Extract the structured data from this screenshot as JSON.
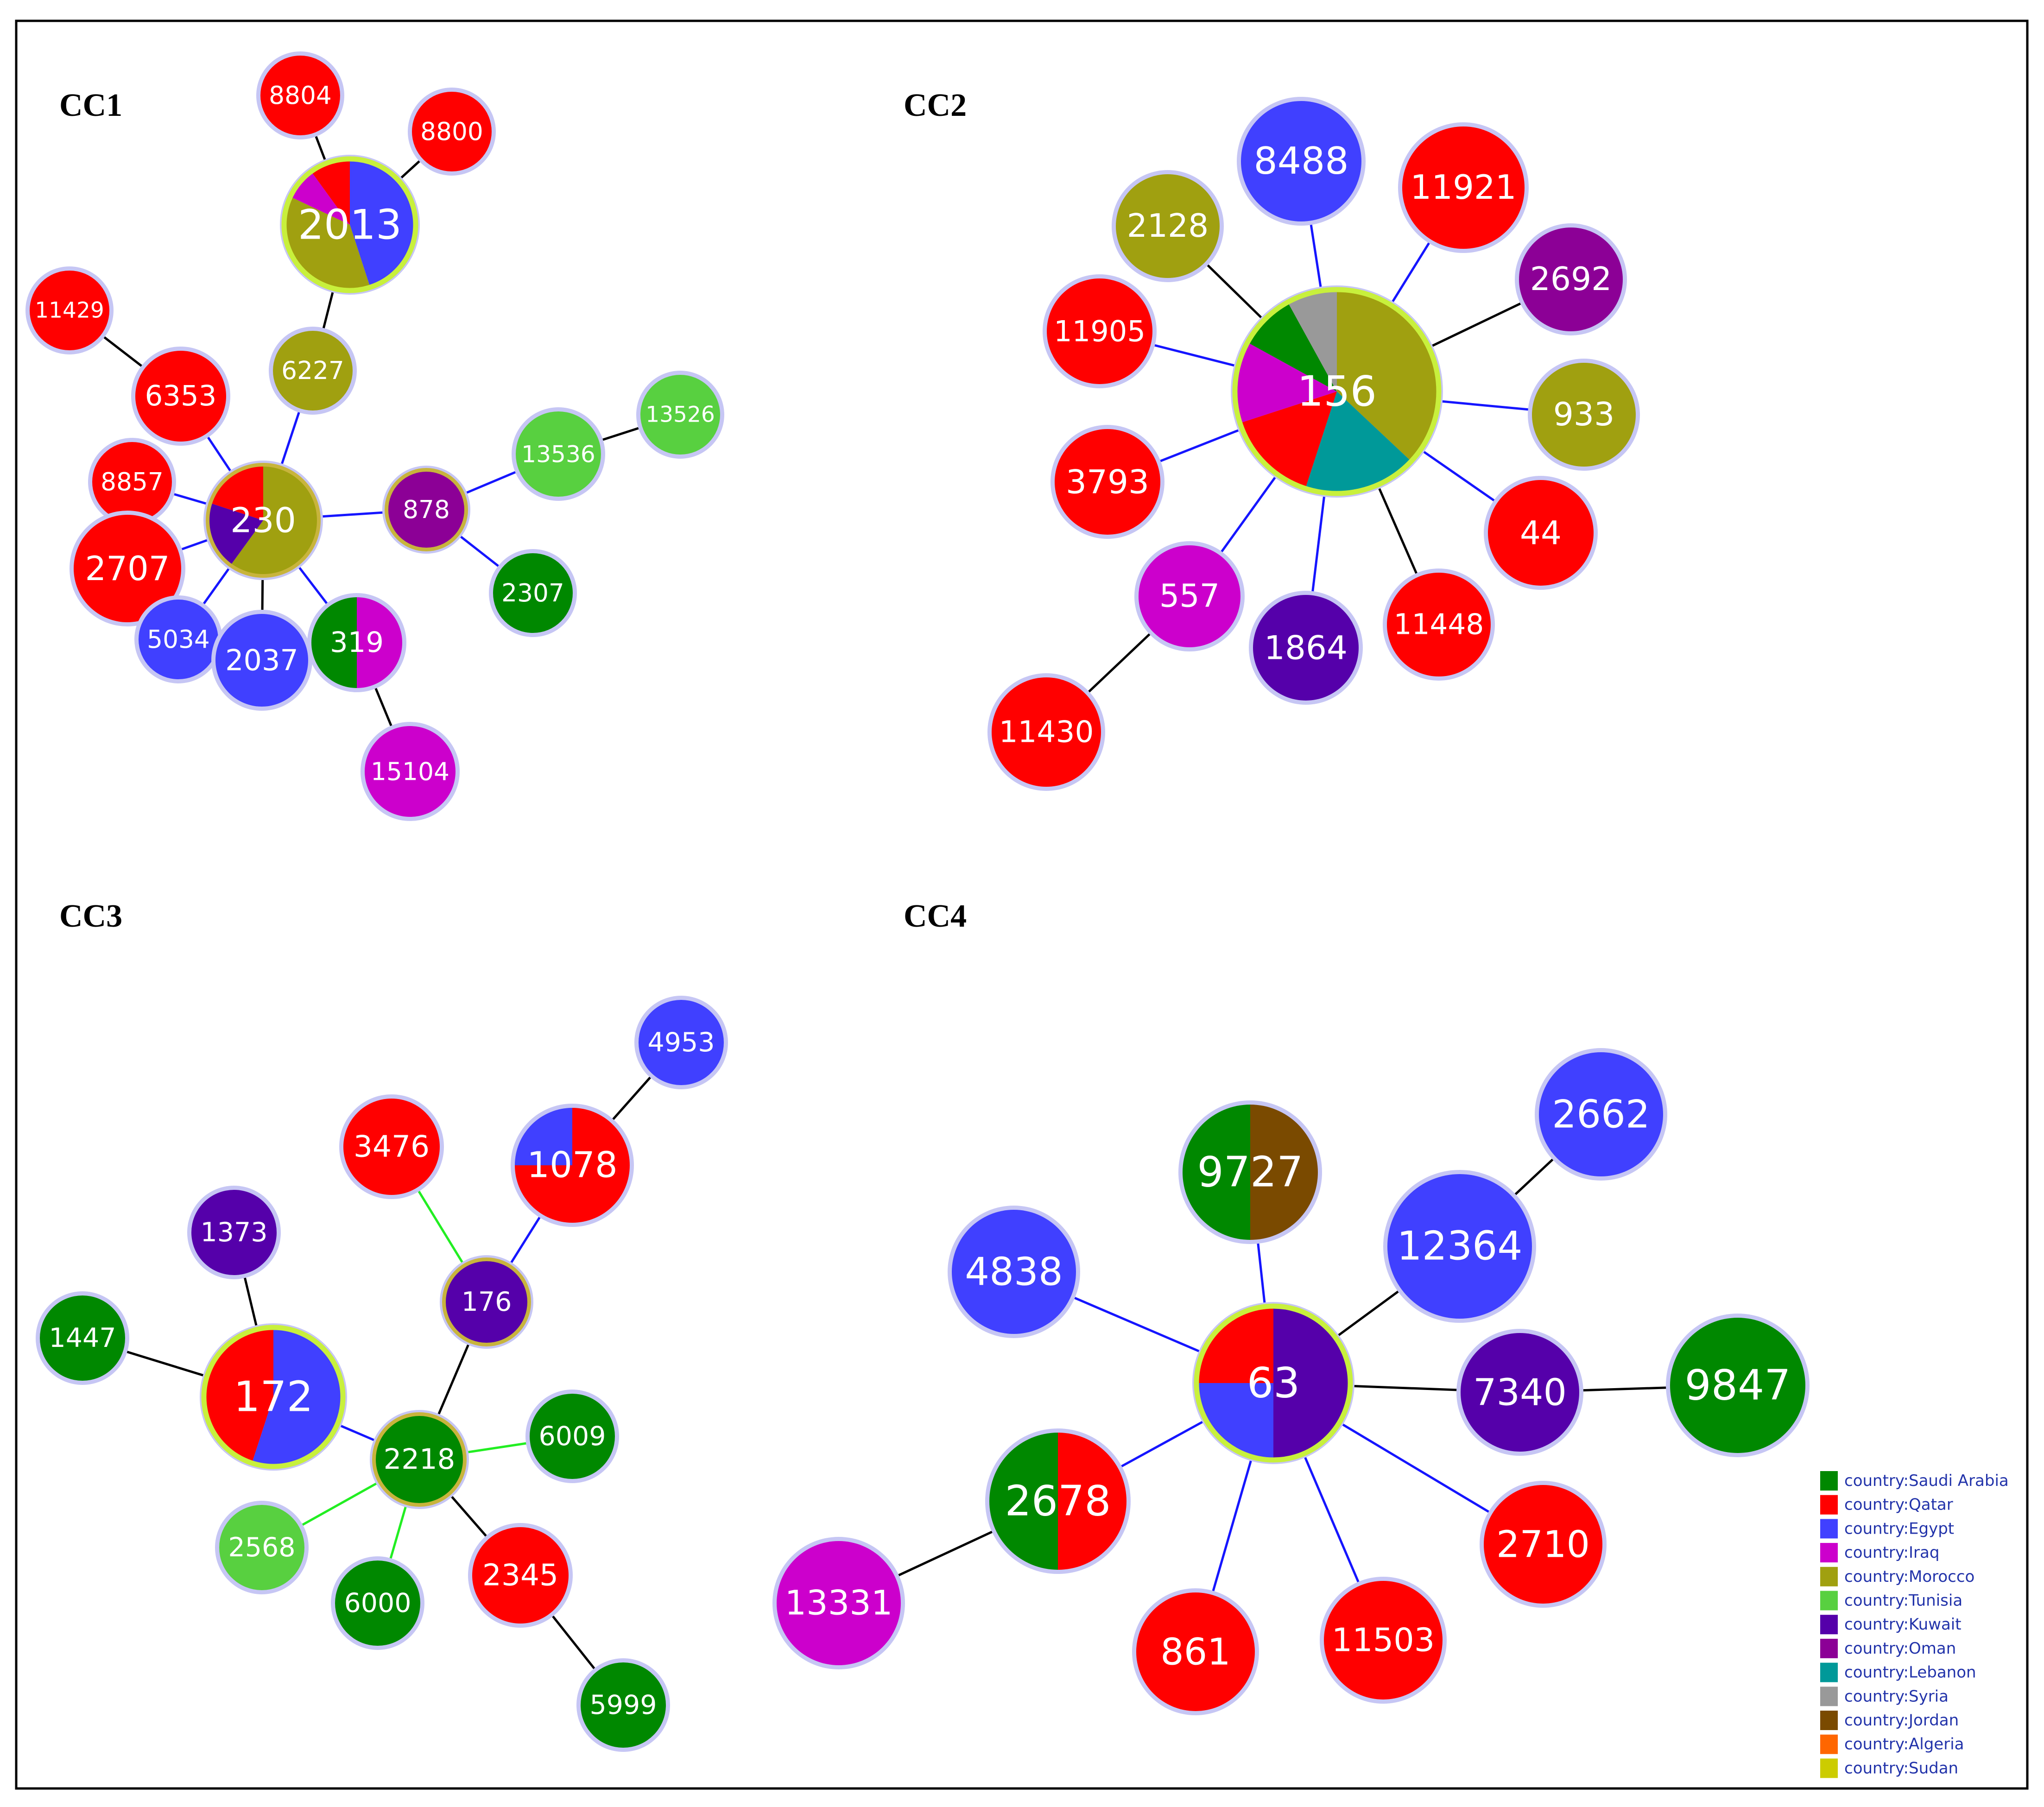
{
  "colors": {
    "Saudi Arabia": "#008800",
    "Qatar": "#ff0000",
    "Egypt": "#4040ff",
    "Iraq": "#cc00cc",
    "Morocco": "#a0a010",
    "Tunisia": "#58d040",
    "Kuwait": "#5500aa",
    "Oman": "#8c0096",
    "Lebanon": "#009999",
    "Syria": "#999999",
    "Jordan": "#7a4a00",
    "Algeria": "#ff6600",
    "Sudan": "#cccc00"
  },
  "legend": [
    {
      "country": "Saudi Arabia",
      "label": "country:Saudi Arabia"
    },
    {
      "country": "Qatar",
      "label": "country:Qatar"
    },
    {
      "country": "Egypt",
      "label": "country:Egypt"
    },
    {
      "country": "Iraq",
      "label": "country:Iraq"
    },
    {
      "country": "Morocco",
      "label": "country:Morocco"
    },
    {
      "country": "Tunisia",
      "label": "country:Tunisia"
    },
    {
      "country": "Kuwait",
      "label": "country:Kuwait"
    },
    {
      "country": "Oman",
      "label": "country:Oman"
    },
    {
      "country": "Lebanon",
      "label": "country:Lebanon"
    },
    {
      "country": "Syria",
      "label": "country:Syria"
    },
    {
      "country": "Jordan",
      "label": "country:Jordan"
    },
    {
      "country": "Algeria",
      "label": "country:Algeria"
    },
    {
      "country": "Sudan",
      "label": "country:Sudan"
    }
  ],
  "clusters": [
    {
      "title": "CC1",
      "nodes": [
        {
          "id": "2013",
          "founder": true,
          "pie": [
            [
              "Egypt",
              45
            ],
            [
              "Morocco",
              37
            ],
            [
              "Iraq",
              8
            ],
            [
              "Qatar",
              10
            ]
          ]
        },
        {
          "id": "8804",
          "pie": [
            [
              "Qatar",
              1
            ]
          ]
        },
        {
          "id": "8800",
          "pie": [
            [
              "Qatar",
              1
            ]
          ]
        },
        {
          "id": "11429",
          "pie": [
            [
              "Qatar",
              1
            ]
          ]
        },
        {
          "id": "6353",
          "pie": [
            [
              "Qatar",
              1
            ]
          ]
        },
        {
          "id": "6227",
          "pie": [
            [
              "Morocco",
              1
            ]
          ]
        },
        {
          "id": "230",
          "founder": true,
          "pie": [
            [
              "Morocco",
              60
            ],
            [
              "Kuwait",
              20
            ],
            [
              "Qatar",
              20
            ]
          ]
        },
        {
          "id": "8857",
          "pie": [
            [
              "Qatar",
              1
            ]
          ]
        },
        {
          "id": "2707",
          "pie": [
            [
              "Qatar",
              1
            ]
          ]
        },
        {
          "id": "5034",
          "pie": [
            [
              "Egypt",
              1
            ]
          ]
        },
        {
          "id": "2037",
          "pie": [
            [
              "Egypt",
              1
            ]
          ]
        },
        {
          "id": "319",
          "pie": [
            [
              "Iraq",
              50
            ],
            [
              "Saudi Arabia",
              50
            ]
          ]
        },
        {
          "id": "15104",
          "pie": [
            [
              "Iraq",
              1
            ]
          ]
        },
        {
          "id": "878",
          "founder": true,
          "pie": [
            [
              "Oman",
              1
            ]
          ]
        },
        {
          "id": "13536",
          "pie": [
            [
              "Tunisia",
              1
            ]
          ]
        },
        {
          "id": "13526",
          "pie": [
            [
              "Tunisia",
              1
            ]
          ]
        },
        {
          "id": "2307",
          "pie": [
            [
              "Saudi Arabia",
              1
            ]
          ]
        }
      ],
      "edges": [
        [
          "2013",
          "8804",
          "black"
        ],
        [
          "2013",
          "8800",
          "black"
        ],
        [
          "2013",
          "6227",
          "black"
        ],
        [
          "6227",
          "230",
          "blue"
        ],
        [
          "11429",
          "6353",
          "black"
        ],
        [
          "6353",
          "230",
          "blue"
        ],
        [
          "8857",
          "230",
          "blue"
        ],
        [
          "2707",
          "230",
          "blue"
        ],
        [
          "5034",
          "230",
          "blue"
        ],
        [
          "2037",
          "230",
          "black"
        ],
        [
          "319",
          "230",
          "blue"
        ],
        [
          "319",
          "15104",
          "black"
        ],
        [
          "230",
          "878",
          "blue"
        ],
        [
          "878",
          "13536",
          "blue"
        ],
        [
          "13536",
          "13526",
          "black"
        ],
        [
          "878",
          "2307",
          "blue"
        ]
      ]
    },
    {
      "title": "CC2",
      "nodes": [
        {
          "id": "156",
          "founder": true,
          "pie": [
            [
              "Morocco",
              37
            ],
            [
              "Lebanon",
              18
            ],
            [
              "Qatar",
              15
            ],
            [
              "Iraq",
              13
            ],
            [
              "Saudi Arabia",
              9
            ],
            [
              "Syria",
              8
            ]
          ]
        },
        {
          "id": "8488",
          "pie": [
            [
              "Egypt",
              1
            ]
          ]
        },
        {
          "id": "11921",
          "pie": [
            [
              "Qatar",
              1
            ]
          ]
        },
        {
          "id": "2128",
          "pie": [
            [
              "Morocco",
              1
            ]
          ]
        },
        {
          "id": "2692",
          "pie": [
            [
              "Oman",
              1
            ]
          ]
        },
        {
          "id": "11905",
          "pie": [
            [
              "Qatar",
              1
            ]
          ]
        },
        {
          "id": "933",
          "pie": [
            [
              "Morocco",
              1
            ]
          ]
        },
        {
          "id": "3793",
          "pie": [
            [
              "Qatar",
              1
            ]
          ]
        },
        {
          "id": "44",
          "pie": [
            [
              "Qatar",
              1
            ]
          ]
        },
        {
          "id": "557",
          "pie": [
            [
              "Iraq",
              1
            ]
          ]
        },
        {
          "id": "1864",
          "pie": [
            [
              "Kuwait",
              1
            ]
          ]
        },
        {
          "id": "11448",
          "pie": [
            [
              "Qatar",
              1
            ]
          ]
        },
        {
          "id": "11430",
          "pie": [
            [
              "Qatar",
              1
            ]
          ]
        }
      ],
      "edges": [
        [
          "156",
          "8488",
          "blue"
        ],
        [
          "156",
          "11921",
          "blue"
        ],
        [
          "156",
          "2128",
          "black"
        ],
        [
          "156",
          "2692",
          "black"
        ],
        [
          "156",
          "11905",
          "blue"
        ],
        [
          "156",
          "933",
          "blue"
        ],
        [
          "156",
          "3793",
          "blue"
        ],
        [
          "156",
          "44",
          "blue"
        ],
        [
          "156",
          "557",
          "blue"
        ],
        [
          "156",
          "1864",
          "blue"
        ],
        [
          "156",
          "11448",
          "black"
        ],
        [
          "557",
          "11430",
          "black"
        ]
      ]
    },
    {
      "title": "CC3",
      "nodes": [
        {
          "id": "4953",
          "pie": [
            [
              "Egypt",
              1
            ]
          ]
        },
        {
          "id": "3476",
          "pie": [
            [
              "Qatar",
              1
            ]
          ]
        },
        {
          "id": "1078",
          "pie": [
            [
              "Qatar",
              75
            ],
            [
              "Egypt",
              25
            ]
          ]
        },
        {
          "id": "1373",
          "pie": [
            [
              "Kuwait",
              1
            ]
          ]
        },
        {
          "id": "176",
          "founder": true,
          "pie": [
            [
              "Kuwait",
              1
            ]
          ]
        },
        {
          "id": "1447",
          "pie": [
            [
              "Saudi Arabia",
              1
            ]
          ]
        },
        {
          "id": "172",
          "founder": true,
          "pie": [
            [
              "Egypt",
              55
            ],
            [
              "Qatar",
              45
            ]
          ]
        },
        {
          "id": "2218",
          "founder": true,
          "pie": [
            [
              "Saudi Arabia",
              1
            ]
          ]
        },
        {
          "id": "6009",
          "pie": [
            [
              "Saudi Arabia",
              1
            ]
          ]
        },
        {
          "id": "2568",
          "pie": [
            [
              "Tunisia",
              1
            ]
          ]
        },
        {
          "id": "6000",
          "pie": [
            [
              "Saudi Arabia",
              1
            ]
          ]
        },
        {
          "id": "2345",
          "pie": [
            [
              "Qatar",
              1
            ]
          ]
        },
        {
          "id": "5999",
          "pie": [
            [
              "Saudi Arabia",
              1
            ]
          ]
        }
      ],
      "edges": [
        [
          "1078",
          "4953",
          "black"
        ],
        [
          "1078",
          "176",
          "blue"
        ],
        [
          "3476",
          "176",
          "green"
        ],
        [
          "176",
          "2218",
          "black"
        ],
        [
          "1373",
          "172",
          "black"
        ],
        [
          "1447",
          "172",
          "black"
        ],
        [
          "172",
          "2218",
          "blue"
        ],
        [
          "2218",
          "6009",
          "green"
        ],
        [
          "2218",
          "2568",
          "green"
        ],
        [
          "2218",
          "6000",
          "green"
        ],
        [
          "2218",
          "2345",
          "black"
        ],
        [
          "2345",
          "5999",
          "black"
        ]
      ]
    },
    {
      "title": "CC4",
      "nodes": [
        {
          "id": "9727",
          "pie": [
            [
              "Jordan",
              50
            ],
            [
              "Saudi Arabia",
              50
            ]
          ]
        },
        {
          "id": "2662",
          "pie": [
            [
              "Egypt",
              1
            ]
          ]
        },
        {
          "id": "12364",
          "pie": [
            [
              "Egypt",
              1
            ]
          ]
        },
        {
          "id": "4838",
          "pie": [
            [
              "Egypt",
              1
            ]
          ]
        },
        {
          "id": "63",
          "founder": true,
          "pie": [
            [
              "Kuwait",
              50
            ],
            [
              "Egypt",
              25
            ],
            [
              "Qatar",
              25
            ]
          ]
        },
        {
          "id": "7340",
          "pie": [
            [
              "Kuwait",
              1
            ]
          ]
        },
        {
          "id": "9847",
          "pie": [
            [
              "Saudi Arabia",
              1
            ]
          ]
        },
        {
          "id": "2678",
          "pie": [
            [
              "Qatar",
              50
            ],
            [
              "Saudi Arabia",
              50
            ]
          ]
        },
        {
          "id": "2710",
          "pie": [
            [
              "Qatar",
              1
            ]
          ]
        },
        {
          "id": "13331",
          "pie": [
            [
              "Iraq",
              1
            ]
          ]
        },
        {
          "id": "861",
          "pie": [
            [
              "Qatar",
              1
            ]
          ]
        },
        {
          "id": "11503",
          "pie": [
            [
              "Qatar",
              1
            ]
          ]
        }
      ],
      "edges": [
        [
          "63",
          "9727",
          "blue"
        ],
        [
          "63",
          "12364",
          "black"
        ],
        [
          "12364",
          "2662",
          "black"
        ],
        [
          "63",
          "4838",
          "blue"
        ],
        [
          "63",
          "7340",
          "black"
        ],
        [
          "7340",
          "9847",
          "black"
        ],
        [
          "63",
          "2678",
          "blue"
        ],
        [
          "2678",
          "13331",
          "black"
        ],
        [
          "63",
          "2710",
          "blue"
        ],
        [
          "63",
          "861",
          "blue"
        ],
        [
          "63",
          "11503",
          "blue"
        ]
      ]
    }
  ]
}
